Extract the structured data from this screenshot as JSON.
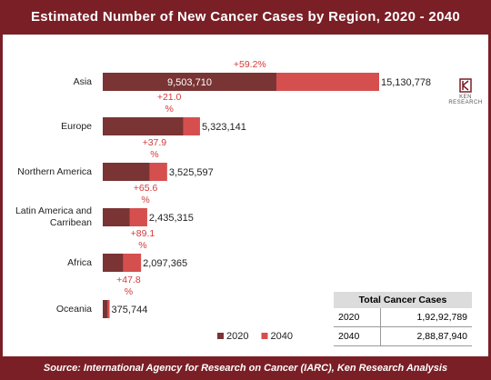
{
  "chart_data": {
    "type": "bar",
    "title": "Estimated Number of New Cancer Cases by Region, 2020 - 2040",
    "categories": [
      "Asia",
      "Europe",
      "Northern America",
      "Latin America and Carribean",
      "Africa",
      "Oceania"
    ],
    "series": [
      {
        "name": "2020",
        "color": "#7a3434",
        "values": [
          9503710,
          4400000,
          2557000,
          1471000,
          1109000,
          254000
        ],
        "value_labels": [
          "9,503,710",
          null,
          null,
          null,
          null,
          null
        ]
      },
      {
        "name": "2040",
        "color": "#d64f4f",
        "values": [
          15130778,
          5323141,
          3525597,
          2435315,
          2097365,
          375744
        ],
        "value_labels": [
          "15,130,778",
          "5,323,141",
          "3,525,597",
          "2,435,315",
          "2,097,365",
          "375,744"
        ]
      }
    ],
    "annotations": [
      "+59.2%",
      "+21.0\n%",
      "+37.9\n%",
      "+65.6\n%",
      "+89.1\n%",
      "+47.8\n%"
    ],
    "legend": "bottom"
  },
  "table": {
    "title": "Total Cancer Cases",
    "rows": [
      [
        "2020",
        "1,92,92,789"
      ],
      [
        "2040",
        "2,88,87,940"
      ]
    ]
  },
  "logo": "KEN RESEARCH",
  "source": "Source: International Agency for Research on Cancer (IARC), Ken Research Analysis"
}
